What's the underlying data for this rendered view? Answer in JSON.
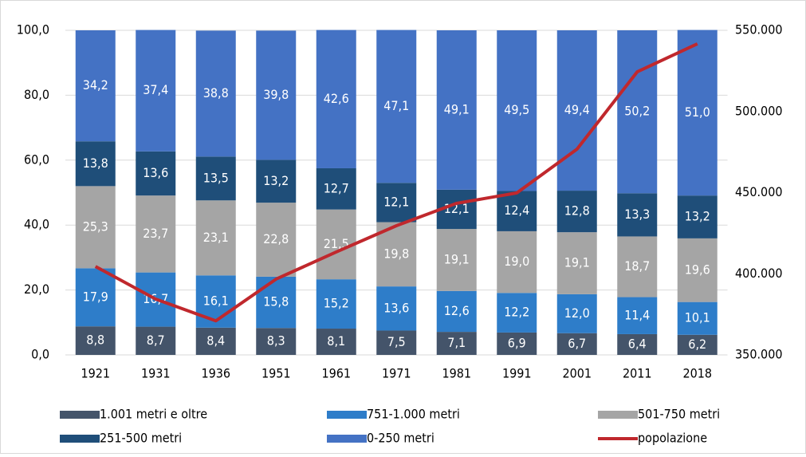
{
  "chart_data": {
    "type": "bar",
    "stacked": true,
    "legend": "bottom",
    "grid": true,
    "categories": [
      "1921",
      "1931",
      "1936",
      "1951",
      "1961",
      "1971",
      "1981",
      "1991",
      "2001",
      "2011",
      "2018"
    ],
    "series": [
      {
        "name": "1.001 metri e oltre",
        "color": "#44546a",
        "values": [
          8.8,
          8.7,
          8.4,
          8.3,
          8.1,
          7.5,
          7.1,
          6.9,
          6.7,
          6.4,
          6.2
        ],
        "value_labels": [
          "8,8",
          "8,7",
          "8,4",
          "8,3",
          "8,1",
          "7,5",
          "7,1",
          "6,9",
          "6,7",
          "6,4",
          "6,2"
        ]
      },
      {
        "name": "751-1.000 metri",
        "color": "#2e7dc9",
        "values": [
          17.9,
          16.7,
          16.1,
          15.8,
          15.2,
          13.6,
          12.6,
          12.2,
          12.0,
          11.4,
          10.1
        ],
        "value_labels": [
          "17,9",
          "16,7",
          "16,1",
          "15,8",
          "15,2",
          "13,6",
          "12,6",
          "12,2",
          "12,0",
          "11,4",
          "10,1"
        ]
      },
      {
        "name": "501-750 metri",
        "color": "#a5a5a5",
        "values": [
          25.3,
          23.7,
          23.1,
          22.8,
          21.5,
          19.8,
          19.1,
          19.0,
          19.1,
          18.7,
          19.6
        ],
        "value_labels": [
          "25,3",
          "23,7",
          "23,1",
          "22,8",
          "21,5",
          "19,8",
          "19,1",
          "19,0",
          "19,1",
          "18,7",
          "19,6"
        ]
      },
      {
        "name": "251-500 metri",
        "color": "#1f4e79",
        "values": [
          13.8,
          13.6,
          13.5,
          13.2,
          12.7,
          12.1,
          12.1,
          12.4,
          12.8,
          13.3,
          13.2
        ],
        "value_labels": [
          "13,8",
          "13,6",
          "13,5",
          "13,2",
          "12,7",
          "12,1",
          "12,1",
          "12,4",
          "12,8",
          "13,3",
          "13,2"
        ]
      },
      {
        "name": "0-250 metri",
        "color": "#4472c4",
        "values": [
          34.2,
          37.4,
          38.8,
          39.8,
          42.6,
          47.1,
          49.1,
          49.5,
          49.4,
          50.2,
          51.0
        ],
        "value_labels": [
          "34,2",
          "37,4",
          "38,8",
          "39,8",
          "42,6",
          "47,1",
          "49,1",
          "49,5",
          "49,4",
          "50,2",
          "51,0"
        ]
      },
      {
        "name": "popolazione",
        "type": "line",
        "axis": "y2",
        "color": "#c0282d",
        "values": [
          404500,
          384400,
          371000,
          396700,
          413400,
          429600,
          443400,
          449800,
          476800,
          524400,
          541700
        ]
      }
    ],
    "ylim": [
      0,
      100
    ],
    "yticks": [
      {
        "value": 0,
        "label": "0,0"
      },
      {
        "value": 20,
        "label": "20,0"
      },
      {
        "value": 40,
        "label": "40,0"
      },
      {
        "value": 60,
        "label": "60,0"
      },
      {
        "value": 80,
        "label": "80,0"
      },
      {
        "value": 100,
        "label": "100,0"
      }
    ],
    "y2lim": [
      350000,
      550000
    ],
    "y2ticks": [
      {
        "value": 350000,
        "label": "350.000"
      },
      {
        "value": 400000,
        "label": "400.000"
      },
      {
        "value": 450000,
        "label": "450.000"
      },
      {
        "value": 500000,
        "label": "500.000"
      },
      {
        "value": 550000,
        "label": "550.000"
      }
    ]
  }
}
